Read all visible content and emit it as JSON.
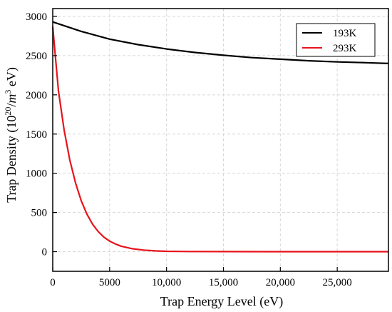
{
  "chart_data": {
    "type": "line",
    "xlabel": "Trap Energy Level (eV)",
    "ylabel_prefix": "Trap Density (10",
    "ylabel_sup1": "20",
    "ylabel_mid": "/",
    "ylabel_m": "m",
    "ylabel_sup2": "3",
    "ylabel_suffix": " eV)",
    "xlim": [
      0,
      29500
    ],
    "ylim": [
      -250,
      3100
    ],
    "x_ticks": [
      0,
      5000,
      10000,
      15000,
      20000,
      25000
    ],
    "x_tick_labels": [
      "0",
      "5000",
      "10,000",
      "15,000",
      "20,000",
      "25,000"
    ],
    "y_ticks": [
      0,
      500,
      1000,
      1500,
      2000,
      2500,
      3000
    ],
    "y_tick_labels": [
      "0",
      "500",
      "1000",
      "1500",
      "2000",
      "2500",
      "3000"
    ],
    "grid": true,
    "legend_position": "top-right",
    "series": [
      {
        "name": "193K",
        "color": "#000000",
        "x": [
          0,
          2500,
          5000,
          7500,
          10000,
          12500,
          15000,
          17500,
          20000,
          22500,
          25000,
          27500,
          29500
        ],
        "y": [
          2930,
          2810,
          2710,
          2640,
          2585,
          2540,
          2505,
          2475,
          2455,
          2435,
          2420,
          2410,
          2400
        ]
      },
      {
        "name": "293K",
        "color": "#e8131b",
        "x": [
          0,
          500,
          1000,
          1500,
          2000,
          2500,
          3000,
          3500,
          4000,
          4500,
          5000,
          5500,
          6000,
          7000,
          8000,
          9000,
          10000,
          12000,
          15000,
          20000,
          25000,
          29500
        ],
        "y": [
          2870,
          2050,
          1550,
          1170,
          880,
          650,
          480,
          350,
          255,
          185,
          135,
          100,
          70,
          38,
          20,
          10,
          5,
          2,
          1,
          0,
          0,
          0
        ]
      }
    ]
  }
}
